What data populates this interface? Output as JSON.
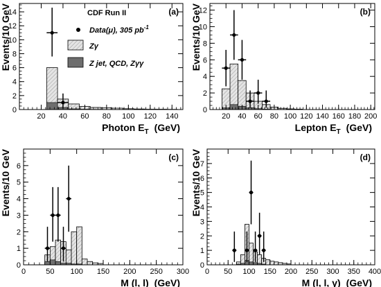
{
  "legend": {
    "title": "CDF Run II",
    "data_label": "Data(μ), 305 pb",
    "data_sup": "-1",
    "zg_label": "Zγ",
    "bkg_label": "Z jet, QCD, Zγγ"
  },
  "colors": {
    "zg_fill": "#e4e4e4",
    "zg_hatch": "#9a9a9a",
    "bkg_fill": "#6e6e6e",
    "data": "#000000",
    "axis": "#000000"
  },
  "chart_data": [
    {
      "type": "bar",
      "panel": "(a)",
      "xlabel": "Photon E",
      "xlabel_sub": "T",
      "xlabel_unit": "(GeV)",
      "ylabel": "Events/10 GeV",
      "xlim": [
        0,
        150
      ],
      "ylim": [
        0,
        15.2
      ],
      "xticks": [
        20,
        40,
        60,
        80,
        100,
        120,
        140
      ],
      "yticks": [
        0,
        2,
        4,
        6,
        8,
        10,
        12,
        14
      ],
      "edges": [
        25,
        35,
        45,
        55,
        65,
        75,
        85,
        95,
        105,
        115,
        125,
        135,
        145
      ],
      "total": [
        6.0,
        1.5,
        0.8,
        0.45,
        0.3,
        0.25,
        0.2,
        0.12,
        0.08,
        0.05,
        0.05,
        0.03
      ],
      "background": [
        1.0,
        0.3,
        0.1,
        0.05,
        0.03,
        0.02,
        0,
        0,
        0,
        0,
        0,
        0
      ],
      "data": [
        {
          "x": 30,
          "y": 11,
          "ylo": 7.6,
          "yhi": 14.6,
          "xlo": 25,
          "xhi": 35
        },
        {
          "x": 40,
          "y": 1,
          "ylo": 0.2,
          "yhi": 2.3,
          "xlo": 35,
          "xhi": 45
        }
      ]
    },
    {
      "type": "bar",
      "panel": "(b)",
      "xlabel": "Lepton E",
      "xlabel_sub": "T",
      "xlabel_unit": "(GeV)",
      "ylabel": "Events/10 GeV",
      "xlim": [
        0,
        205
      ],
      "ylim": [
        0,
        12.8
      ],
      "xticks": [
        20,
        40,
        60,
        80,
        100,
        120,
        140,
        160,
        180,
        200
      ],
      "yticks": [
        0,
        2,
        4,
        6,
        8,
        10,
        12
      ],
      "edges": [
        15,
        25,
        35,
        45,
        55,
        65,
        75,
        85,
        95,
        105,
        115
      ],
      "total": [
        2.5,
        5.5,
        3.5,
        2.0,
        1.0,
        0.6,
        0.3,
        0.15,
        0.08,
        0.05
      ],
      "background": [
        0.2,
        0.6,
        0.4,
        0.2,
        0.1,
        0.05,
        0,
        0,
        0,
        0
      ],
      "data": [
        {
          "x": 20,
          "y": 5,
          "ylo": 2.8,
          "yhi": 7.2,
          "xlo": 15,
          "xhi": 25
        },
        {
          "x": 30,
          "y": 9,
          "ylo": 6.0,
          "yhi": 12.0,
          "xlo": 25,
          "xhi": 35
        },
        {
          "x": 40,
          "y": 6,
          "ylo": 3.6,
          "yhi": 8.4,
          "xlo": 35,
          "xhi": 45
        },
        {
          "x": 50,
          "y": 1,
          "ylo": 0.2,
          "yhi": 2.3,
          "xlo": 45,
          "xhi": 55
        },
        {
          "x": 60,
          "y": 2,
          "ylo": 0.7,
          "yhi": 3.6,
          "xlo": 55,
          "xhi": 65
        },
        {
          "x": 70,
          "y": 1,
          "ylo": 0.2,
          "yhi": 2.3,
          "xlo": 65,
          "xhi": 75
        }
      ]
    },
    {
      "type": "bar",
      "panel": "(c)",
      "xlabel": "M (l, l)",
      "xlabel_sub": "",
      "xlabel_unit": "(GeV)",
      "ylabel": "Events/10 GeV",
      "xlim": [
        0,
        300
      ],
      "ylim": [
        0,
        7.0
      ],
      "xticks": [
        0,
        50,
        100,
        150,
        200,
        250,
        300
      ],
      "yticks": [
        0,
        1,
        2,
        3,
        4,
        5,
        6
      ],
      "edges": [
        40,
        50,
        60,
        70,
        80,
        90,
        100,
        110,
        120,
        130,
        140,
        150
      ],
      "total": [
        0.6,
        1.1,
        1.5,
        1.4,
        0.9,
        2.0,
        2.3,
        0.35,
        0.2,
        0.12,
        0.08
      ],
      "background": [
        0.2,
        0.3,
        0.2,
        0.1,
        0.1,
        0.05,
        0.05,
        0,
        0,
        0,
        0
      ],
      "data": [
        {
          "x": 45,
          "y": 1,
          "ylo": 0.2,
          "yhi": 2.3,
          "xlo": 40,
          "xhi": 50
        },
        {
          "x": 55,
          "y": 3,
          "ylo": 1.4,
          "yhi": 4.7,
          "xlo": 50,
          "xhi": 60
        },
        {
          "x": 65,
          "y": 3,
          "ylo": 1.4,
          "yhi": 4.7,
          "xlo": 60,
          "xhi": 70
        },
        {
          "x": 75,
          "y": 1,
          "ylo": 0.2,
          "yhi": 2.3,
          "xlo": 70,
          "xhi": 80
        },
        {
          "x": 85,
          "y": 4,
          "ylo": 2.0,
          "yhi": 6.0,
          "xlo": 80,
          "xhi": 90
        }
      ]
    },
    {
      "type": "bar",
      "panel": "(d)",
      "xlabel": "M (l, l, γ)",
      "xlabel_sub": "",
      "xlabel_unit": "(GeV)",
      "ylabel": "Events/10 GeV",
      "xlim": [
        0,
        400
      ],
      "ylim": [
        0,
        8.0
      ],
      "xticks": [
        0,
        50,
        100,
        150,
        200,
        250,
        300,
        350,
        400
      ],
      "yticks": [
        0,
        1,
        2,
        3,
        4,
        5,
        6,
        7
      ],
      "edges": [
        70,
        80,
        90,
        100,
        110,
        120,
        130,
        140,
        150,
        160,
        170,
        180,
        190,
        200
      ],
      "total": [
        0.2,
        0.7,
        2.8,
        1.5,
        0.9,
        0.7,
        0.45,
        0.35,
        0.25,
        0.2,
        0.15,
        0.1,
        0.06
      ],
      "background": [
        0.05,
        0.1,
        0.3,
        0.2,
        0.15,
        0.1,
        0.05,
        0,
        0,
        0,
        0,
        0,
        0
      ],
      "data": [
        {
          "x": 65,
          "y": 1,
          "ylo": 0.2,
          "yhi": 2.3,
          "xlo": 60,
          "xhi": 70
        },
        {
          "x": 95,
          "y": 1,
          "ylo": 0.2,
          "yhi": 2.3,
          "xlo": 90,
          "xhi": 100
        },
        {
          "x": 105,
          "y": 5,
          "ylo": 2.8,
          "yhi": 7.2,
          "xlo": 100,
          "xhi": 110
        },
        {
          "x": 115,
          "y": 1,
          "ylo": 0.2,
          "yhi": 2.3,
          "xlo": 110,
          "xhi": 120
        },
        {
          "x": 125,
          "y": 2,
          "ylo": 0.7,
          "yhi": 3.6,
          "xlo": 120,
          "xhi": 130
        },
        {
          "x": 135,
          "y": 1,
          "ylo": 0.2,
          "yhi": 2.3,
          "xlo": 130,
          "xhi": 140
        }
      ]
    }
  ]
}
